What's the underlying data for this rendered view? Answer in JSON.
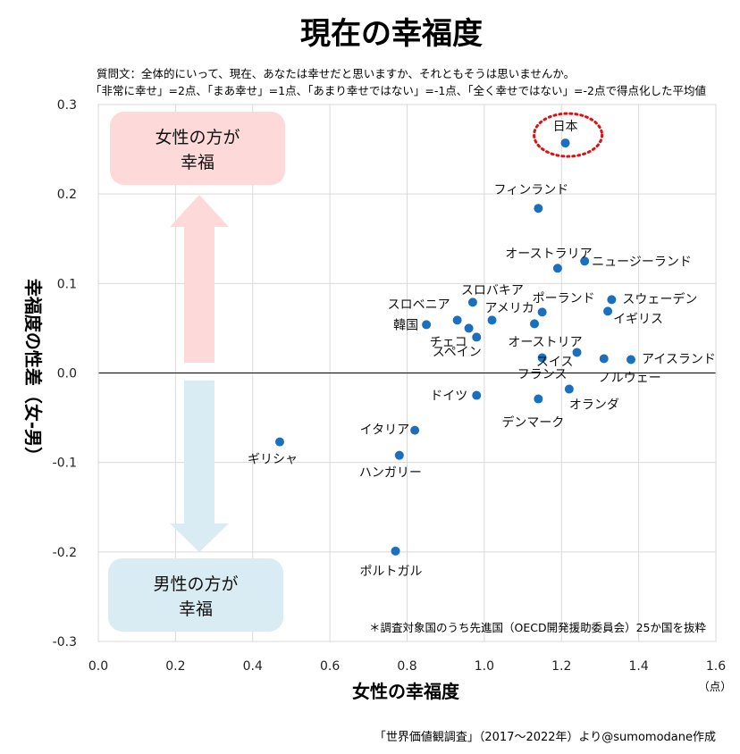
{
  "title": "現在の幸福度",
  "question_line1": "質問文：全体的にいって、現在、あなたは幸せだと思いますか、それともそうは思いませんか。",
  "question_line2": "「非常に幸せ」=2点、「まあ幸せ」=1点、「あまり幸せではない」=-1点、「全く幸せではない」=-2点で得点化した平均値",
  "female_box": [
    "女性の方が",
    "幸福"
  ],
  "male_box": [
    "男性の方が",
    "幸福"
  ],
  "footnote": "＊調査対象国のうち先進国（OECD開発援助委員会）25か国を抜粋",
  "unit_label": "（点）",
  "credit": "「世界価値観調査」（2017～2022年）より@sumomodane作成",
  "colors": {
    "point": "#1a6fbf",
    "female_box": "#fdd9da",
    "male_box": "#daecf3",
    "highlight_circle": "#e01010",
    "grid": "#d9d9d9",
    "zero_line": "#000000"
  },
  "chart_data": {
    "type": "scatter",
    "title": "現在の幸福度",
    "xlabel": "女性の幸福度",
    "ylabel": "幸福度の性差（女-男）",
    "xlim": [
      0.0,
      1.6
    ],
    "ylim": [
      -0.3,
      0.3
    ],
    "x_ticks": [
      "0.0",
      "0.2",
      "0.4",
      "0.6",
      "0.8",
      "1.0",
      "1.2",
      "1.4",
      "1.6"
    ],
    "y_ticks": [
      "0.3",
      "0.2",
      "0.1",
      "0.0",
      "-0.1",
      "-0.2",
      "-0.3"
    ],
    "grid": true,
    "highlight": "日本",
    "points": [
      {
        "label": "日本",
        "x": 1.21,
        "y": 0.257
      },
      {
        "label": "フィンランド",
        "x": 1.14,
        "y": 0.184
      },
      {
        "label": "オーストラリア",
        "x": 1.19,
        "y": 0.117
      },
      {
        "label": "ニュージーランド",
        "x": 1.26,
        "y": 0.125
      },
      {
        "label": "スロバキア",
        "x": 0.97,
        "y": 0.079
      },
      {
        "label": "ポーランド",
        "x": 1.15,
        "y": 0.068
      },
      {
        "label": "スウェーデン",
        "x": 1.33,
        "y": 0.082
      },
      {
        "label": "イギリス",
        "x": 1.32,
        "y": 0.069
      },
      {
        "label": "スロベニア",
        "x": 0.93,
        "y": 0.059
      },
      {
        "label": "アメリカ",
        "x": 1.02,
        "y": 0.059
      },
      {
        "label": "韓国",
        "x": 0.85,
        "y": 0.054
      },
      {
        "label": "チェコ",
        "x": 0.96,
        "y": 0.05
      },
      {
        "label": "オーストリア",
        "x": 1.13,
        "y": 0.055
      },
      {
        "label": "スペイン",
        "x": 0.98,
        "y": 0.04
      },
      {
        "label": "スイス",
        "x": 1.24,
        "y": 0.023
      },
      {
        "label": "フランス",
        "x": 1.15,
        "y": 0.017
      },
      {
        "label": "アイスランド",
        "x": 1.38,
        "y": 0.015
      },
      {
        "label": "ノルウェー",
        "x": 1.31,
        "y": 0.016
      },
      {
        "label": "ドイツ",
        "x": 0.98,
        "y": -0.025
      },
      {
        "label": "オランダ",
        "x": 1.22,
        "y": -0.018
      },
      {
        "label": "デンマーク",
        "x": 1.14,
        "y": -0.029
      },
      {
        "label": "イタリア",
        "x": 0.82,
        "y": -0.064
      },
      {
        "label": "ハンガリー",
        "x": 0.78,
        "y": -0.092
      },
      {
        "label": "ギリシャ",
        "x": 0.47,
        "y": -0.077
      },
      {
        "label": "ポルトガル",
        "x": 0.77,
        "y": -0.199
      }
    ]
  }
}
